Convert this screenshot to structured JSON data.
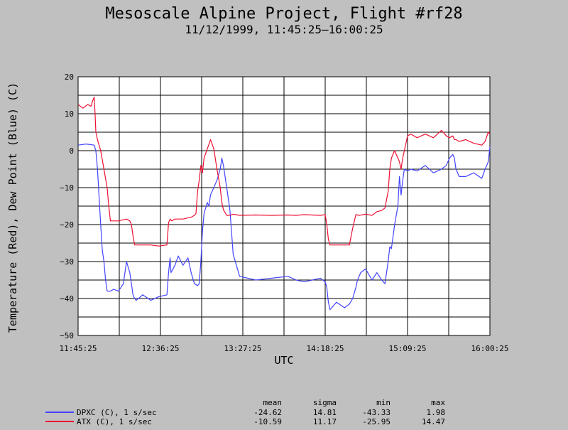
{
  "colors": {
    "background": "#c0c0c0",
    "plot_background": "#ffffff",
    "grid": "#000000",
    "dew_point": "#4444ff",
    "temperature": "#ee1133"
  },
  "chart_data": {
    "type": "line",
    "title": "Mesoscale Alpine Project, Flight #rf28",
    "subtitle": "11/12/1999, 11:45:25–16:00:25",
    "xlabel": "UTC",
    "ylabel": "Temperature (Red), Dew Point (Blue) (C)",
    "ylim": [
      -50,
      20
    ],
    "xlim_minutes": [
      0,
      255
    ],
    "grid": true,
    "x_ticks": [
      {
        "label": "11:45:25",
        "minutes": 0
      },
      {
        "label": "12:36:25",
        "minutes": 51
      },
      {
        "label": "13:27:25",
        "minutes": 102
      },
      {
        "label": "14:18:25",
        "minutes": 153
      },
      {
        "label": "15:09:25",
        "minutes": 204
      },
      {
        "label": "16:00:25",
        "minutes": 255
      }
    ],
    "y_ticks": [
      20,
      10,
      0,
      -10,
      -20,
      -30,
      -40,
      -50
    ],
    "series": [
      {
        "key": "dew_point",
        "name": "DPXC (C), 1 s/sec",
        "color": "#4444ff",
        "x": [
          0,
          5,
          10,
          11,
          12,
          14,
          15,
          16,
          17,
          18,
          20,
          22,
          25,
          28,
          30,
          32,
          33,
          34,
          35,
          36,
          40,
          45,
          50,
          55,
          56,
          57,
          57.5,
          60,
          62,
          65,
          68,
          70,
          72,
          74,
          75,
          76,
          77,
          78,
          80,
          81,
          82,
          84,
          86,
          88,
          89,
          90,
          91,
          92,
          94,
          96,
          100,
          110,
          120,
          130,
          135,
          140,
          145,
          150,
          153,
          154,
          155,
          156,
          158,
          160,
          165,
          168,
          170,
          172,
          173,
          174,
          175,
          178,
          182,
          185,
          188,
          190,
          192,
          193,
          194,
          196,
          198,
          199,
          200,
          201,
          202,
          204,
          206,
          210,
          215,
          220,
          225,
          228,
          230,
          232,
          233,
          234,
          236,
          240,
          245,
          250,
          252,
          254,
          255
        ],
        "y": [
          1.5,
          1.8,
          1.5,
          0,
          -5,
          -20,
          -27,
          -30,
          -35,
          -38,
          -38,
          -37.5,
          -38,
          -36,
          -30,
          -33,
          -36,
          -39,
          -40,
          -40.5,
          -39,
          -40.5,
          -39.5,
          -39,
          -33,
          -29,
          -33,
          -31,
          -28.5,
          -31,
          -29,
          -33,
          -36,
          -36.5,
          -36,
          -30,
          -22,
          -17,
          -14,
          -15,
          -12,
          -10,
          -8,
          -5,
          -2,
          -4,
          -7,
          -10,
          -16,
          -28,
          -34,
          -35,
          -34.5,
          -34,
          -35,
          -35.5,
          -35,
          -34.5,
          -35.5,
          -37,
          -41,
          -43,
          -42,
          -41,
          -42.5,
          -41.5,
          -40,
          -37,
          -35,
          -34,
          -33,
          -32,
          -35,
          -33,
          -35,
          -36,
          -30,
          -26,
          -26.5,
          -20,
          -15,
          -7,
          -12,
          -8,
          -5,
          -5.5,
          -5,
          -5.5,
          -4,
          -6,
          -5,
          -4,
          -2,
          -1,
          -2,
          -5,
          -7,
          -7,
          -6,
          -7.5,
          -5,
          -3,
          1
        ]
      },
      {
        "key": "temperature",
        "name": "ATX (C), 1 s/sec",
        "color": "#ee1133",
        "x": [
          0,
          3,
          6,
          8,
          9,
          10,
          10.5,
          11,
          12,
          14,
          16,
          18,
          19,
          20,
          22,
          25,
          30,
          32,
          33,
          34,
          35,
          36,
          40,
          45,
          50,
          55,
          56,
          57,
          58,
          60,
          65,
          70,
          72,
          73,
          74,
          75,
          76,
          77,
          78,
          80,
          82,
          84,
          86,
          88,
          89,
          90,
          92,
          94,
          96,
          100,
          110,
          120,
          130,
          135,
          140,
          145,
          150,
          153,
          154,
          155,
          156,
          160,
          165,
          168,
          170,
          172,
          174,
          178,
          182,
          185,
          188,
          190,
          192,
          193,
          194,
          196,
          198,
          199,
          200,
          201,
          202,
          204,
          206,
          210,
          215,
          220,
          225,
          228,
          230,
          232,
          233,
          234,
          236,
          240,
          245,
          250,
          252,
          254,
          255
        ],
        "y": [
          12.5,
          11.5,
          12.5,
          12,
          13.5,
          14.5,
          10,
          5,
          3,
          0,
          -5,
          -10,
          -15,
          -19,
          -19,
          -19,
          -18.5,
          -19,
          -20,
          -23,
          -25.5,
          -25.5,
          -25.5,
          -25.5,
          -25.8,
          -25.5,
          -19.5,
          -18.5,
          -19,
          -18.5,
          -18.5,
          -18,
          -17.5,
          -17,
          -11,
          -8,
          -4,
          -6,
          -2,
          0.5,
          3,
          0.5,
          -5,
          -10,
          -14,
          -16,
          -17.5,
          -17.5,
          -17.2,
          -17.5,
          -17.4,
          -17.5,
          -17.4,
          -17.5,
          -17.3,
          -17.4,
          -17.5,
          -17.3,
          -20,
          -24,
          -25.5,
          -25.5,
          -25.5,
          -25.5,
          -21,
          -17.3,
          -17.5,
          -17.2,
          -17.5,
          -16.5,
          -16.2,
          -15.5,
          -11,
          -5,
          -2,
          0,
          -2,
          -3,
          -5,
          -2,
          0,
          4,
          4.5,
          3.5,
          4.5,
          3.5,
          5.5,
          4,
          3.5,
          4,
          3,
          3,
          2.5,
          3,
          2,
          1.5,
          2.5,
          5,
          4.5
        ]
      }
    ]
  },
  "stats": {
    "headers": [
      "mean",
      "sigma",
      "min",
      "max"
    ],
    "rows": [
      {
        "label": "DPXC (C), 1 s/sec",
        "color": "#4444ff",
        "values": [
          "-24.62",
          "14.81",
          "-43.33",
          "1.98"
        ]
      },
      {
        "label": "ATX (C), 1 s/sec",
        "color": "#ee1133",
        "values": [
          "-10.59",
          "11.17",
          "-25.95",
          "14.47"
        ]
      }
    ]
  }
}
